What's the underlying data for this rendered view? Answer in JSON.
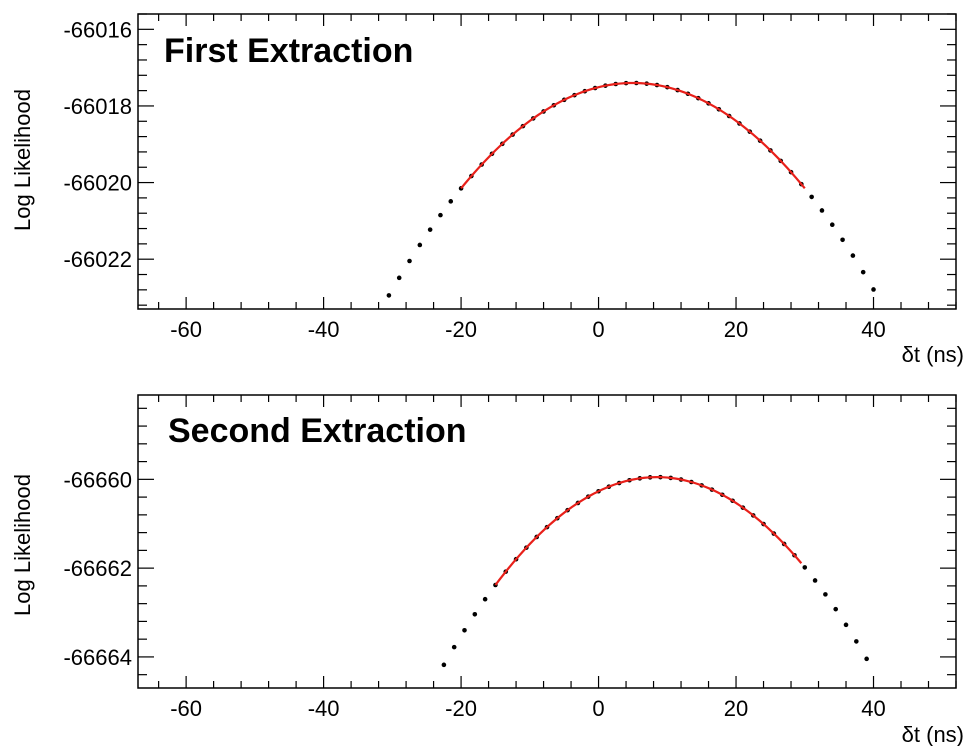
{
  "chart_data": [
    {
      "type": "scatter",
      "title": "First Extraction",
      "xlabel": "δt (ns)",
      "ylabel": "Log Likelihood",
      "xlim": [
        -67,
        52
      ],
      "ylim": [
        -66023.3,
        -66015.6
      ],
      "x_ticks": [
        -60,
        -40,
        -20,
        0,
        20,
        40
      ],
      "y_ticks": [
        -66022,
        -66020,
        -66018,
        -66016
      ],
      "x_tick_labels": [
        "-60",
        "-40",
        "-20",
        "0",
        "20",
        "40"
      ],
      "y_tick_labels": [
        "-66022",
        "-66020",
        "-66018",
        "-66016"
      ],
      "grid": false,
      "series": [
        {
          "kind": "points",
          "color": "#000000",
          "peak_x": 5,
          "peak_y": -66017.4,
          "curvature": 0.0044,
          "x_range": [
            -32,
            40
          ],
          "step": 1.5
        },
        {
          "kind": "fit",
          "color": "#e8201a",
          "peak_x": 5,
          "peak_y": -66017.4,
          "curvature": 0.0044,
          "x_range": [
            -20,
            30
          ]
        }
      ]
    },
    {
      "type": "scatter",
      "title": "Second Extraction",
      "xlabel": "δt (ns)",
      "ylabel": "Log Likelihood",
      "xlim": [
        -67,
        52
      ],
      "ylim": [
        -66664.7,
        -66658.1
      ],
      "x_ticks": [
        -60,
        -40,
        -20,
        0,
        20,
        40
      ],
      "y_ticks": [
        -66664,
        -66662,
        -66660
      ],
      "x_tick_labels": [
        "-60",
        "-40",
        "-20",
        "0",
        "20",
        "40"
      ],
      "y_tick_labels": [
        "-66664",
        "-66662",
        "-66660"
      ],
      "grid": false,
      "series": [
        {
          "kind": "points",
          "color": "#000000",
          "peak_x": 8.5,
          "peak_y": -66659.95,
          "curvature": 0.0044,
          "x_range": [
            -22.5,
            40
          ],
          "step": 1.5
        },
        {
          "kind": "fit",
          "color": "#e8201a",
          "peak_x": 8.5,
          "peak_y": -66659.95,
          "curvature": 0.0044,
          "x_range": [
            -15,
            29.5
          ]
        }
      ]
    }
  ]
}
